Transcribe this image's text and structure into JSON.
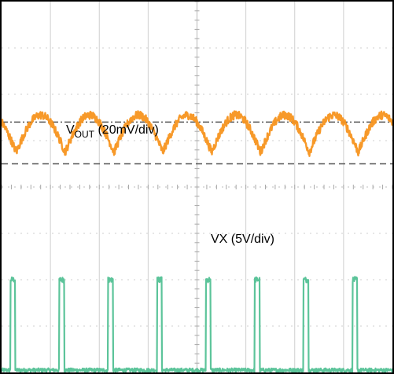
{
  "chart_data": {
    "type": "line",
    "title": "",
    "grid": true,
    "divisions": {
      "x": 8,
      "y": 8
    },
    "annotations": [
      {
        "name": "vout",
        "main": "V",
        "sub": "OUT",
        "rest": " (20mV/div)"
      },
      {
        "name": "vx",
        "text": "VX (5V/div)"
      }
    ],
    "series": [
      {
        "name": "VOUT",
        "color": "#f7941d",
        "units_per_div": "20mV",
        "reference_level_div": 5.15,
        "shape": "periodic ripple, rising to peaks between switching edges",
        "period_div": 1.0,
        "first_cusp_div": 0.3,
        "min_div": -0.4,
        "max_div": 0.4
      },
      {
        "name": "VX",
        "color": "#5cc49a",
        "units_per_div": "5V",
        "reference_level_div": 0.0,
        "shape": "periodic pulse train",
        "period_div": 1.0,
        "first_pulse_start_div": 0.18,
        "pulse_width_div": 0.1,
        "low_level_div": 0.05,
        "high_level_div": 2.0
      }
    ],
    "dashed_reference_lines": [
      {
        "level_div": 4.5,
        "style": "dashed"
      },
      {
        "level_div": 5.4,
        "style": "dash-dot"
      }
    ]
  }
}
